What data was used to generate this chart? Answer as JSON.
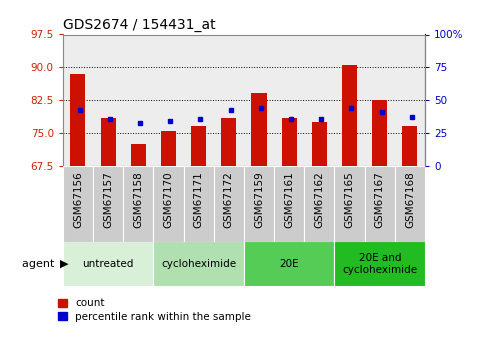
{
  "title": "GDS2674 / 154431_at",
  "samples": [
    "GSM67156",
    "GSM67157",
    "GSM67158",
    "GSM67170",
    "GSM67171",
    "GSM67172",
    "GSM67159",
    "GSM67161",
    "GSM67162",
    "GSM67165",
    "GSM67167",
    "GSM67168"
  ],
  "count_values": [
    88.5,
    78.5,
    72.5,
    75.5,
    76.5,
    78.5,
    84.0,
    78.5,
    77.5,
    90.5,
    82.5,
    76.5
  ],
  "percentile_values": [
    80.2,
    78.2,
    77.2,
    77.7,
    78.2,
    80.2,
    80.6,
    78.2,
    78.2,
    80.6,
    79.7,
    78.7
  ],
  "ylim": [
    67.5,
    97.5
  ],
  "yticks_left": [
    67.5,
    75.0,
    82.5,
    90.0,
    97.5
  ],
  "yticks_right": [
    0,
    25,
    50,
    75,
    100
  ],
  "groups": [
    {
      "label": "untreated",
      "start": 0,
      "end": 3,
      "color": "#d8f0d8"
    },
    {
      "label": "cycloheximide",
      "start": 3,
      "end": 6,
      "color": "#b0e0b0"
    },
    {
      "label": "20E",
      "start": 6,
      "end": 9,
      "color": "#55cc55"
    },
    {
      "label": "20E and\ncycloheximide",
      "start": 9,
      "end": 12,
      "color": "#22bb22"
    }
  ],
  "bar_color": "#cc1100",
  "percentile_color": "#0000cc",
  "base_value": 67.5,
  "bar_width": 0.5,
  "background_color": "#ffffff",
  "plot_bg_color": "#ffffff",
  "grid_color": "#000000",
  "sample_bg_color": "#cccccc",
  "left_axis_color": "#cc2200",
  "right_axis_color": "#0000cc",
  "title_fontsize": 10,
  "tick_fontsize": 7.5,
  "label_fontsize": 7.5,
  "group_fontsize": 7.5
}
